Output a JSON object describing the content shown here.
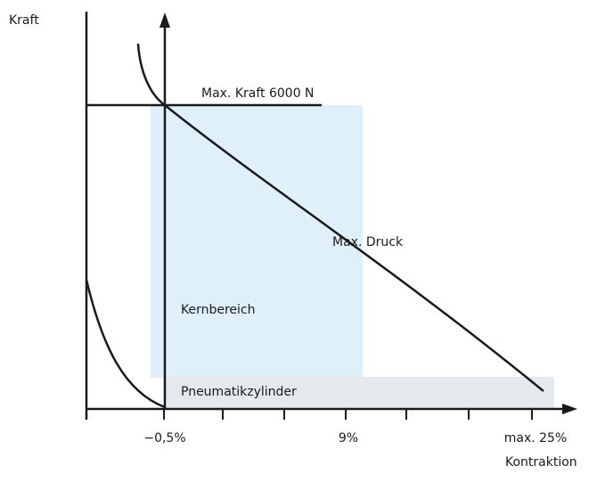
{
  "diagram": {
    "y_axis_label": "Kraft",
    "x_axis_label": "Kontraktion",
    "x_ticks": {
      "left": "−0,5%",
      "middle": "9%",
      "right": "max. 25%"
    },
    "labels": {
      "max_force": "Max. Kraft 6000 N",
      "max_pressure": "Max. Druck",
      "core_range": "Kernbereich",
      "pneumatic_cylinder": "Pneumatikzylinder"
    },
    "colors": {
      "line": "#1a1a1a",
      "core_range_fill": "#dff0fb",
      "pneumatic_band_fill": "#e6e9ec"
    }
  }
}
